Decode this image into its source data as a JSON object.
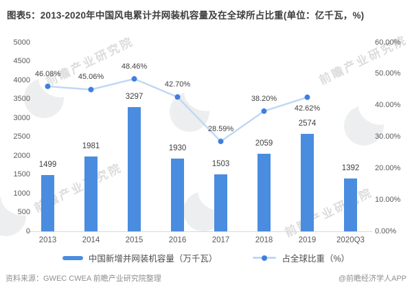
{
  "title": "图表5：2013-2020年中国风电累计并网装机容量及在全球所占比重(单位：亿千瓦，%)",
  "footer": {
    "source": "资料来源：GWEC CWEA 前瞻产业研究院整理",
    "credit": "@前瞻经济学人APP"
  },
  "watermark": {
    "text": "前瞻产业研究院",
    "logo": "qianzhan-crescent-logo"
  },
  "colors": {
    "bar": "#4a8cdf",
    "line": "#bfd8f4",
    "marker": "#3f7fe0",
    "axis_text": "#595959",
    "label_text": "#404040",
    "axis_line": "#d9d9d9"
  },
  "chart_data": {
    "type": "bar",
    "title": "图表5：2013-2020年中国风电累计并网装机容量及在全球所占比重(单位：亿千瓦，%)",
    "categories": [
      "2013",
      "2014",
      "2015",
      "2016",
      "2017",
      "2018",
      "2019",
      "2020Q3"
    ],
    "series": [
      {
        "name": "中国新增并网装机容量（万千瓦）",
        "type": "bar",
        "axis": "left",
        "values": [
          1499,
          1981,
          3297,
          1930,
          1503,
          2059,
          2574,
          1392
        ]
      },
      {
        "name": "占全球比重（%）",
        "type": "line",
        "axis": "right",
        "values": [
          46.08,
          45.06,
          48.46,
          42.7,
          28.59,
          38.2,
          42.62,
          null
        ],
        "labels": [
          "46.08%",
          "45.06%",
          "48.46%",
          "42.70%",
          "28.59%",
          "38.20%",
          "42.62%",
          null
        ],
        "label_positions": [
          "above",
          "above",
          "above",
          "above",
          "above",
          "above",
          "below",
          null
        ]
      }
    ],
    "left_axis": {
      "min": 0,
      "max": 5000,
      "step": 500,
      "ticks": [
        "5000",
        "4500",
        "4000",
        "3500",
        "3000",
        "2500",
        "2000",
        "1500",
        "1000",
        "500",
        "0"
      ]
    },
    "right_axis": {
      "min": 0,
      "max": 60,
      "ticks": [
        "60.00%",
        "50.00%",
        "40.00%",
        "30.00%",
        "20.00%",
        "10.00%",
        "0.00%"
      ]
    },
    "grid": false,
    "legend_position": "bottom"
  }
}
